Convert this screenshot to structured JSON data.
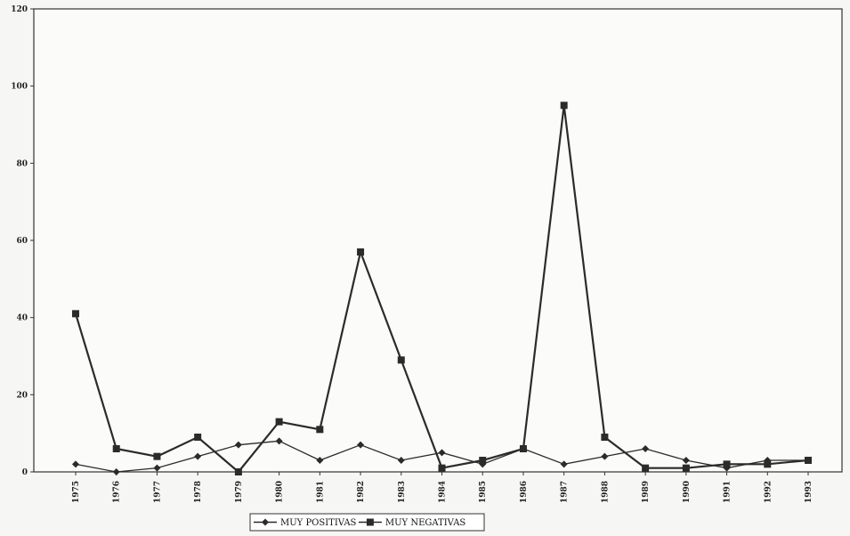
{
  "chart_data": {
    "type": "line",
    "title": "",
    "xlabel": "",
    "ylabel": "",
    "ylim": [
      0,
      120
    ],
    "yticks": [
      0,
      20,
      40,
      60,
      80,
      100,
      120
    ],
    "categories": [
      "1975",
      "1976",
      "1977",
      "1978",
      "1979",
      "1980",
      "1981",
      "1982",
      "1983",
      "1984",
      "1985",
      "1986",
      "1987",
      "1988",
      "1989",
      "1990",
      "1991",
      "1992",
      "1993"
    ],
    "series": [
      {
        "name": "MUY POSITIVAS",
        "marker": "diamond",
        "color": "#2b2b2b",
        "values": [
          2,
          0,
          1,
          4,
          7,
          8,
          3,
          7,
          3,
          5,
          2,
          6,
          2,
          4,
          6,
          3,
          1,
          3,
          3
        ]
      },
      {
        "name": "MUY NEGATIVAS",
        "marker": "square",
        "color": "#2b2b2b",
        "values": [
          41,
          6,
          4,
          9,
          0,
          13,
          11,
          57,
          29,
          1,
          3,
          6,
          95,
          9,
          1,
          1,
          2,
          2,
          3
        ]
      }
    ],
    "legend_position": "bottom-center",
    "grid": false
  }
}
